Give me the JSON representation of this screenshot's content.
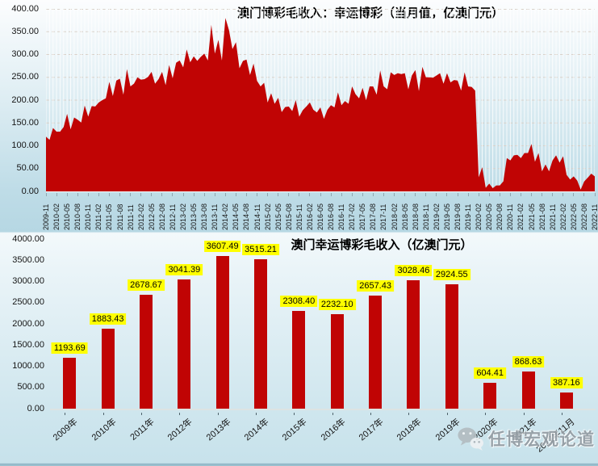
{
  "watermark": {
    "text": "任博宏观论道",
    "icon": "wechat-icon"
  },
  "chart_data": [
    {
      "type": "area",
      "title": "澳门博彩毛收入：幸运博彩（当月值，亿澳门元）",
      "unit": "亿澳门元",
      "x_interval": "monthly",
      "x_start": "2009-11",
      "x_end": "2022-11",
      "ylim": [
        0,
        400
      ],
      "y_tick_labels": [
        "400.00",
        "350.00",
        "300.00",
        "250.00",
        "200.00",
        "150.00",
        "100.00",
        "50.00",
        "0.00"
      ],
      "x_tick_labels": [
        "2009-11",
        "2010-02",
        "2010-05",
        "2010-08",
        "2010-11",
        "2011-02",
        "2011-05",
        "2011-08",
        "2011-11",
        "2012-02",
        "2012-05",
        "2012-08",
        "2012-11",
        "2013-02",
        "2013-05",
        "2013-08",
        "2013-11",
        "2014-02",
        "2014-05",
        "2014-08",
        "2014-11",
        "2015-02",
        "2015-05",
        "2015-08",
        "2015-11",
        "2016-02",
        "2016-05",
        "2016-08",
        "2016-11",
        "2017-02",
        "2017-05",
        "2017-08",
        "2017-11",
        "2018-02",
        "2018-05",
        "2018-08",
        "2018-11",
        "2019-02",
        "2019-05",
        "2019-08",
        "2019-11",
        "2020-02",
        "2020-05",
        "2020-08",
        "2020-11",
        "2021-02",
        "2021-05",
        "2021-08",
        "2021-11",
        "2022-02",
        "2022-05",
        "2022-08",
        "2022-11"
      ],
      "values": [
        120,
        113,
        139,
        131,
        131,
        141,
        170,
        136,
        162,
        157,
        151,
        188,
        164,
        187,
        186,
        195,
        200,
        204,
        240,
        209,
        243,
        247,
        212,
        268,
        230,
        236,
        250,
        245,
        246,
        251,
        262,
        236,
        246,
        262,
        233,
        277,
        248,
        282,
        287,
        272,
        311,
        283,
        296,
        286,
        295,
        302,
        287,
        365,
        302,
        332,
        287,
        380,
        354,
        312,
        327,
        270,
        286,
        289,
        255,
        280,
        242,
        230,
        238,
        195,
        215,
        192,
        205,
        174,
        185,
        186,
        176,
        200,
        164,
        178,
        186,
        195,
        179,
        173,
        184,
        159,
        179,
        189,
        184,
        217,
        189,
        198,
        192,
        230,
        213,
        204,
        227,
        200,
        230,
        230,
        212,
        265,
        230,
        224,
        261,
        255,
        259,
        257,
        259,
        224,
        254,
        266,
        220,
        273,
        250,
        250,
        249,
        254,
        259,
        236,
        259,
        239,
        244,
        243,
        221,
        261,
        230,
        229,
        221,
        31,
        53,
        8,
        17,
        7,
        13,
        13,
        22,
        73,
        68,
        79,
        80,
        73,
        84,
        84,
        104,
        65,
        84,
        44,
        59,
        44,
        68,
        79,
        63,
        77,
        36,
        26,
        33,
        24,
        4,
        22,
        30,
        39,
        33
      ],
      "series_color": "#c00404",
      "grid": {
        "horizontal": "dashed",
        "vertical": "solid-white"
      },
      "legend": "none"
    },
    {
      "type": "bar",
      "title": "澳门幸运博彩毛收入（亿澳门元）",
      "unit": "亿澳门元",
      "categories": [
        "2009年",
        "2010年",
        "2011年",
        "2012年",
        "2013年",
        "2014年",
        "2015年",
        "2016年",
        "2017年",
        "2018年",
        "2019年",
        "2020年",
        "2021年",
        "2022年11月"
      ],
      "values": [
        1193.69,
        1883.43,
        2678.67,
        3041.39,
        3607.49,
        3515.21,
        2308.4,
        2232.1,
        2657.43,
        3028.46,
        2924.55,
        604.41,
        868.63,
        387.16
      ],
      "value_labels": [
        "1193.69",
        "1883.43",
        "2678.67",
        "3041.39",
        "3607.49",
        "3515.21",
        "2308.40",
        "2232.10",
        "2657.43",
        "3028.46",
        "2924.55",
        "604.41",
        "868.63",
        "387.16"
      ],
      "ylim": [
        0,
        4000
      ],
      "y_tick_labels": [
        "4000.00",
        "3500.00",
        "3000.00",
        "2500.00",
        "2000.00",
        "1500.00",
        "1000.00",
        "500.00",
        "0.00"
      ],
      "bar_color": "#c00404",
      "label_bg_color": "#ffff00",
      "grid": "none",
      "legend": "none"
    }
  ]
}
